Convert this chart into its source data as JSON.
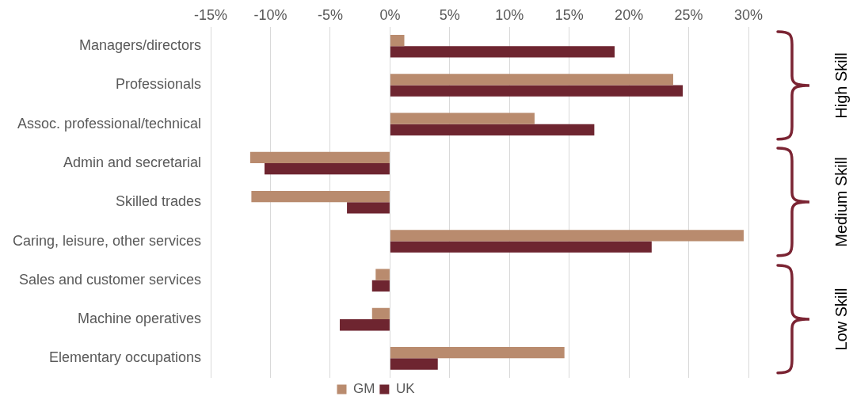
{
  "chart_data": {
    "type": "bar",
    "orientation": "horizontal",
    "categories": [
      "Managers/directors",
      "Professionals",
      "Assoc. professional/technical",
      "Admin and secretarial",
      "Skilled trades",
      "Caring, leisure, other services",
      "Sales and customer services",
      "Machine operatives",
      "Elementary occupations"
    ],
    "series": [
      {
        "name": "GM",
        "color": "#b98b6e",
        "values": [
          1.2,
          23.7,
          12.1,
          -11.7,
          -11.6,
          29.6,
          -1.2,
          -1.5,
          14.6
        ]
      },
      {
        "name": "UK",
        "color": "#6e2530",
        "values": [
          18.8,
          24.5,
          17.1,
          -10.5,
          -3.6,
          21.9,
          -1.5,
          -4.2,
          4.0
        ]
      }
    ],
    "xlim": [
      -15,
      30
    ],
    "xticks": [
      {
        "value": -15,
        "label": "-15%"
      },
      {
        "value": -10,
        "label": "-10%"
      },
      {
        "value": -5,
        "label": "-5%"
      },
      {
        "value": 0,
        "label": "0%"
      },
      {
        "value": 5,
        "label": "5%"
      },
      {
        "value": 10,
        "label": "10%"
      },
      {
        "value": 15,
        "label": "15%"
      },
      {
        "value": 20,
        "label": "20%"
      },
      {
        "value": 25,
        "label": "25%"
      },
      {
        "value": 30,
        "label": "30%"
      }
    ],
    "grid": "x",
    "legend": "bottom",
    "annotations": [
      "High Skill",
      "Medium Skill",
      "Low Skill"
    ]
  }
}
